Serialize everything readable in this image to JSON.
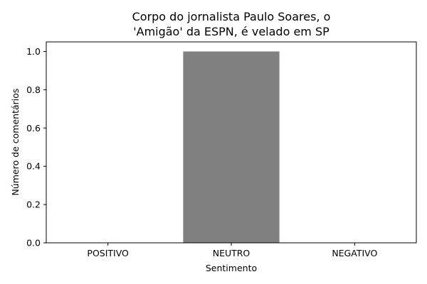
{
  "chart_data": {
    "type": "bar",
    "title_lines": [
      "Corpo do jornalista Paulo Soares, o",
      "'Amigão' da ESPN, é velado em SP"
    ],
    "categories": [
      "POSITIVO",
      "NEUTRO",
      "NEGATIVO"
    ],
    "values": [
      0,
      1,
      0
    ],
    "xlabel": "Sentimento",
    "ylabel": "Número de comentários",
    "ylim": [
      0,
      1.05
    ],
    "yticks": [
      "0.0",
      "0.2",
      "0.4",
      "0.6",
      "0.8",
      "1.0"
    ],
    "bar_color": "#808080",
    "grid": false,
    "legend": "none"
  }
}
